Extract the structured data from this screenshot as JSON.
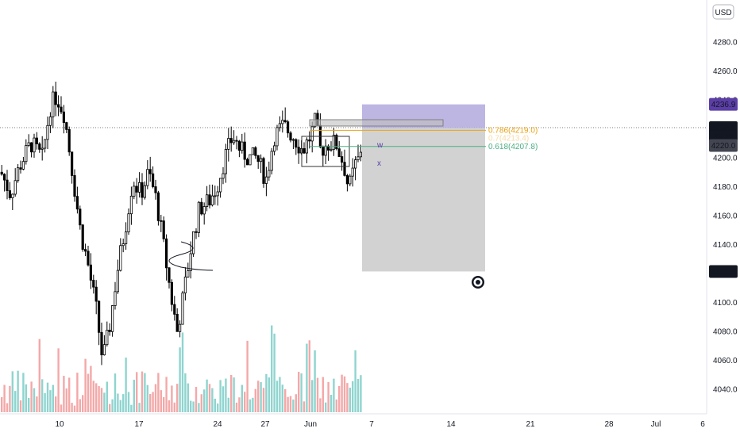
{
  "chart_data": {
    "type": "candlestick",
    "currency_label": "USD",
    "price_axis": {
      "ylim": [
        4025,
        4300
      ],
      "ticks": [
        4040,
        4060,
        4080,
        4100,
        4120,
        4140,
        4160,
        4180,
        4200,
        4220,
        4240,
        4260,
        4280
      ]
    },
    "time_axis": {
      "labels": [
        "10",
        "17",
        "24",
        "27",
        "Jun",
        "7",
        "14",
        "21",
        "28",
        "Jul",
        "6"
      ]
    },
    "price_badges": [
      {
        "label": "4236.9",
        "price": 4236.9,
        "color": "#5b3ea6"
      },
      {
        "label": "4220.8",
        "price": 4220.8,
        "color": "#131722"
      },
      {
        "label": "35:29",
        "price": 4214.6,
        "color": "#131722"
      },
      {
        "label": "4220.0",
        "price": 4208.5,
        "color": "#434651"
      },
      {
        "label": "4121.4",
        "price": 4121.4,
        "color": "#131722"
      }
    ],
    "current_price": 4220.8,
    "fib_levels": [
      {
        "label": "0.786(4219.0)",
        "price": 4219.0,
        "color": "#e8a317"
      },
      {
        "label": "0.618(4207.8)",
        "price": 4207.8,
        "color": "#4caf85"
      }
    ],
    "fib_overlap_label": "0.7(4213.4)",
    "position_box": {
      "entry": 4220.5,
      "target": 4236.9,
      "stop": 4121.4
    },
    "colors": {
      "up": "#26a69a",
      "down": "#ef5350",
      "candle": "#000000",
      "vol_up": "#8fd4cf",
      "vol_down": "#f4a8a8",
      "profit_zone": "#b2a8dd",
      "loss_zone": "#d0d0d0"
    }
  }
}
